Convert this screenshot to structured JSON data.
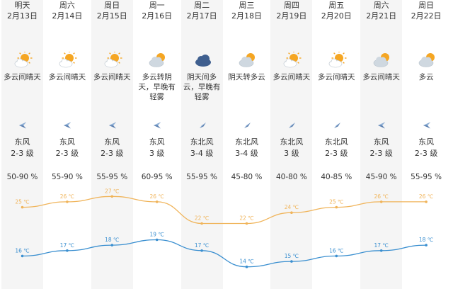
{
  "forecast": {
    "days": [
      {
        "day": "明天",
        "date": "2月13日",
        "weather": "多云间晴天",
        "icon": "partly-sunny-icon",
        "wind_dir": "东风",
        "wind_level": "2-3 级",
        "humidity": "50-90 %",
        "high": 25,
        "low": 16,
        "high_label": "25 ℃",
        "low_label": "16 ℃"
      },
      {
        "day": "周六",
        "date": "2月14日",
        "weather": "多云间晴天",
        "icon": "partly-sunny-icon",
        "wind_dir": "东风",
        "wind_level": "2-3 级",
        "humidity": "55-90 %",
        "high": 26,
        "low": 17,
        "high_label": "26 ℃",
        "low_label": "17 ℃"
      },
      {
        "day": "周日",
        "date": "2月15日",
        "weather": "多云间晴天",
        "icon": "partly-sunny-icon",
        "wind_dir": "东风",
        "wind_level": "2-3 级",
        "humidity": "55-95 %",
        "high": 27,
        "low": 18,
        "high_label": "27 ℃",
        "low_label": "18 ℃"
      },
      {
        "day": "周一",
        "date": "2月16日",
        "weather": "多云转阴天，早晚有轻雾",
        "icon": "cloudy-sun-icon",
        "wind_dir": "东风",
        "wind_level": "3 级",
        "humidity": "60-95 %",
        "high": 26,
        "low": 19,
        "high_label": "26 ℃",
        "low_label": "19 ℃"
      },
      {
        "day": "周二",
        "date": "2月17日",
        "weather": "阴天间多云，早晚有轻雾",
        "icon": "overcast-icon",
        "wind_dir": "东北风",
        "wind_level": "3-4 级",
        "humidity": "55-95 %",
        "high": 22,
        "low": 17,
        "high_label": "22 ℃",
        "low_label": "17 ℃"
      },
      {
        "day": "周三",
        "date": "2月18日",
        "weather": "阴天转多云",
        "icon": "cloudy-sun-icon",
        "wind_dir": "东北风",
        "wind_level": "3-4 级",
        "humidity": "45-80 %",
        "high": 22,
        "low": 14,
        "high_label": "22 ℃",
        "low_label": "14 ℃"
      },
      {
        "day": "周四",
        "date": "2月19日",
        "weather": "多云间晴天",
        "icon": "partly-sunny-icon",
        "wind_dir": "东北风",
        "wind_level": "3 级",
        "humidity": "40-80 %",
        "high": 24,
        "low": 15,
        "high_label": "24 ℃",
        "low_label": "15 ℃"
      },
      {
        "day": "周五",
        "date": "2月20日",
        "weather": "多云间晴天",
        "icon": "partly-sunny-icon",
        "wind_dir": "东北风",
        "wind_level": "2-3 级",
        "humidity": "40-85 %",
        "high": 25,
        "low": 16,
        "high_label": "25 ℃",
        "low_label": "16 ℃"
      },
      {
        "day": "周六",
        "date": "2月21日",
        "weather": "多云间晴天",
        "icon": "cloudy-sun-icon",
        "wind_dir": "东风",
        "wind_level": "2-3 级",
        "humidity": "45-90 %",
        "high": 26,
        "low": 17,
        "high_label": "26 ℃",
        "low_label": "17 ℃"
      },
      {
        "day": "周日",
        "date": "2月22日",
        "weather": "多云",
        "icon": "cloudy-sun-icon",
        "wind_dir": "东风",
        "wind_level": "2-3 级",
        "humidity": "55-95 %",
        "high": 26,
        "low": 18,
        "high_label": "26 ℃",
        "low_label": "18 ℃"
      }
    ]
  },
  "colors": {
    "high_line": "#f0b45a",
    "low_line": "#3a8fd0",
    "wind_arrow": "#5a7fb0",
    "sun": "#f5a623",
    "cloud": "#cfd8e0",
    "overcast": "#3f5f8f"
  },
  "chart_data": {
    "type": "line",
    "categories": [
      "2月13日",
      "2月14日",
      "2月15日",
      "2月16日",
      "2月17日",
      "2月18日",
      "2月19日",
      "2月20日",
      "2月21日",
      "2月22日"
    ],
    "series": [
      {
        "values": [
          25,
          26,
          27,
          26,
          22,
          22,
          24,
          25,
          26,
          26
        ]
      },
      {
        "values": [
          16,
          17,
          18,
          19,
          17,
          14,
          15,
          16,
          17,
          18
        ]
      }
    ],
    "ylim": [
      12,
      29
    ],
    "grid": false,
    "legend": "none"
  }
}
